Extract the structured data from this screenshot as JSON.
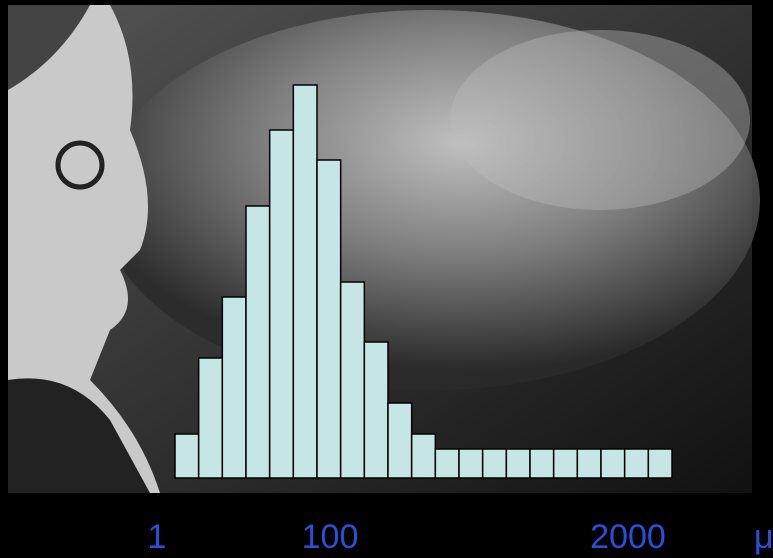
{
  "chart_data": {
    "type": "bar",
    "categories": [
      null,
      null,
      null,
      null,
      null,
      null,
      null,
      null,
      null,
      null,
      null,
      null,
      null,
      null,
      null,
      null,
      null,
      null,
      null,
      null,
      null
    ],
    "values": [
      44,
      120,
      181,
      272,
      348,
      393,
      318,
      196,
      136,
      75,
      44,
      29,
      29,
      29,
      29,
      29,
      29,
      29,
      29,
      29,
      29
    ],
    "color": "#c6e6e6",
    "ylim": [
      0,
      400
    ],
    "x_labels": [
      "1",
      "100",
      "2000"
    ],
    "unit": "μ"
  }
}
